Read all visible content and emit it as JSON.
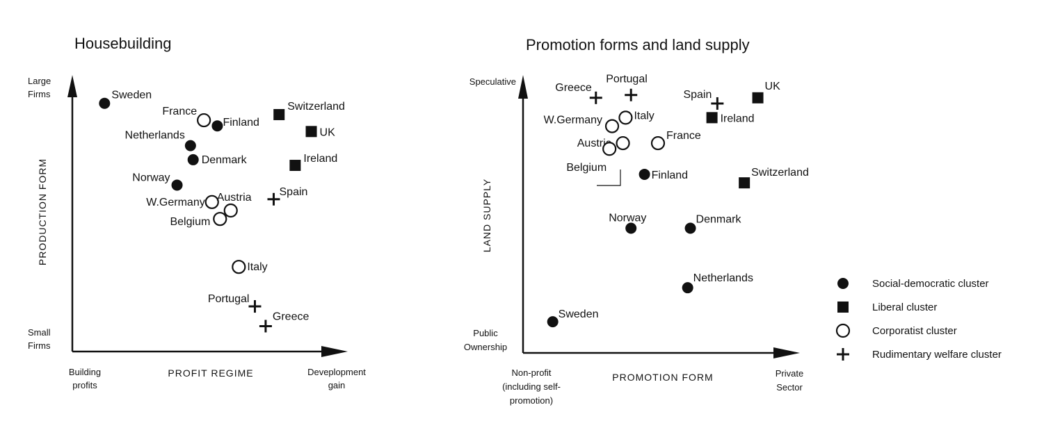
{
  "chart_data": [
    {
      "type": "scatter",
      "title": "Housebuilding",
      "xlabel": "PROFIT REGIME",
      "ylabel": "PRODUCTION FORM",
      "x_range_labels": [
        "Building profits",
        "Development gain"
      ],
      "x_range_labels_display": [
        [
          "Building",
          "profits"
        ],
        [
          "Deveplopment",
          "gain"
        ]
      ],
      "y_range_labels_display": [
        [
          "Large",
          "Firms"
        ],
        [
          "Small",
          "Firms"
        ]
      ],
      "xlim": [
        0,
        100
      ],
      "ylim": [
        0,
        100
      ],
      "series": [
        {
          "name": "Social-democratic cluster",
          "marker": "filled-circle",
          "points": [
            {
              "label": "Sweden",
              "x": 12,
              "y": 88
            },
            {
              "label": "Finland",
              "x": 54,
              "y": 80
            },
            {
              "label": "Netherlands",
              "x": 44,
              "y": 73
            },
            {
              "label": "Denmark",
              "x": 45,
              "y": 68
            },
            {
              "label": "Norway",
              "x": 39,
              "y": 59
            }
          ]
        },
        {
          "name": "Liberal cluster",
          "marker": "filled-square",
          "points": [
            {
              "label": "Switzerland",
              "x": 77,
              "y": 84
            },
            {
              "label": "UK",
              "x": 89,
              "y": 78
            },
            {
              "label": "Ireland",
              "x": 83,
              "y": 66
            }
          ]
        },
        {
          "name": "Corporatist cluster",
          "marker": "open-circle",
          "points": [
            {
              "label": "France",
              "x": 49,
              "y": 82
            },
            {
              "label": "W.Germany",
              "x": 52,
              "y": 53
            },
            {
              "label": "Austria",
              "x": 59,
              "y": 50
            },
            {
              "label": "Belgium",
              "x": 55,
              "y": 47
            },
            {
              "label": "Italy",
              "x": 62,
              "y": 30
            }
          ]
        },
        {
          "name": "Rudimentary welfare cluster",
          "marker": "plus",
          "points": [
            {
              "label": "Spain",
              "x": 75,
              "y": 54
            },
            {
              "label": "Portugal",
              "x": 68,
              "y": 16
            },
            {
              "label": "Greece",
              "x": 72,
              "y": 9
            }
          ]
        }
      ]
    },
    {
      "type": "scatter",
      "title": "Promotion forms and land supply",
      "xlabel": "PROMOTION FORM",
      "ylabel": "LAND SUPPLY",
      "x_range_labels": [
        "Non-profit (including self-promotion)",
        "Private Sector"
      ],
      "x_range_labels_display": [
        [
          "Non-profit",
          "(including self-",
          "promotion)"
        ],
        [
          "Private",
          "Sector"
        ]
      ],
      "y_range_labels_display": [
        [
          "Speculative"
        ],
        [
          "Public",
          "Ownership"
        ]
      ],
      "xlim": [
        0,
        100
      ],
      "ylim": [
        0,
        100
      ],
      "series": [
        {
          "name": "Social-democratic cluster",
          "marker": "filled-circle",
          "points": [
            {
              "label": "Finland",
              "x": 45,
              "y": 63
            },
            {
              "label": "Norway",
              "x": 40,
              "y": 44
            },
            {
              "label": "Denmark",
              "x": 62,
              "y": 44
            },
            {
              "label": "Netherlands",
              "x": 61,
              "y": 23
            },
            {
              "label": "Sweden",
              "x": 11,
              "y": 11
            }
          ]
        },
        {
          "name": "Liberal cluster",
          "marker": "filled-square",
          "points": [
            {
              "label": "UK",
              "x": 87,
              "y": 90
            },
            {
              "label": "Ireland",
              "x": 70,
              "y": 83
            },
            {
              "label": "Switzerland",
              "x": 82,
              "y": 60
            }
          ]
        },
        {
          "name": "Corporatist cluster",
          "marker": "open-circle",
          "points": [
            {
              "label": "Italy",
              "x": 38,
              "y": 83
            },
            {
              "label": "W.Germany",
              "x": 33,
              "y": 80
            },
            {
              "label": "France",
              "x": 50,
              "y": 74
            },
            {
              "label": "Austria",
              "x": 37,
              "y": 74
            },
            {
              "label": "Belgium",
              "x": 32,
              "y": 72
            }
          ]
        },
        {
          "name": "Rudimentary welfare cluster",
          "marker": "plus",
          "points": [
            {
              "label": "Greece",
              "x": 27,
              "y": 90
            },
            {
              "label": "Portugal",
              "x": 40,
              "y": 91
            },
            {
              "label": "Spain",
              "x": 72,
              "y": 88
            }
          ]
        }
      ]
    }
  ],
  "legend": {
    "items": [
      {
        "marker": "filled-circle",
        "label": "Social-democratic cluster"
      },
      {
        "marker": "filled-square",
        "label": "Liberal cluster"
      },
      {
        "marker": "open-circle",
        "label": "Corporatist cluster"
      },
      {
        "marker": "plus",
        "label": "Rudimentary welfare cluster"
      }
    ]
  }
}
